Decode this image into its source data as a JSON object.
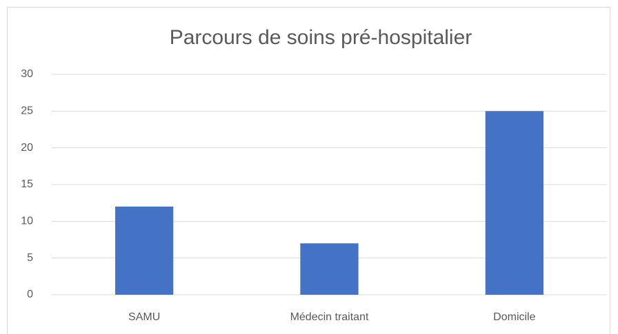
{
  "chart_data": {
    "type": "bar",
    "title": "Parcours de soins pré-hospitalier",
    "categories": [
      "SAMU",
      "Médecin traitant",
      "Domicile"
    ],
    "values": [
      12,
      7,
      25
    ],
    "color": "#4472c4",
    "ylim": [
      0,
      30
    ],
    "yticks": [
      0,
      5,
      10,
      15,
      20,
      25,
      30
    ],
    "grid": true
  }
}
